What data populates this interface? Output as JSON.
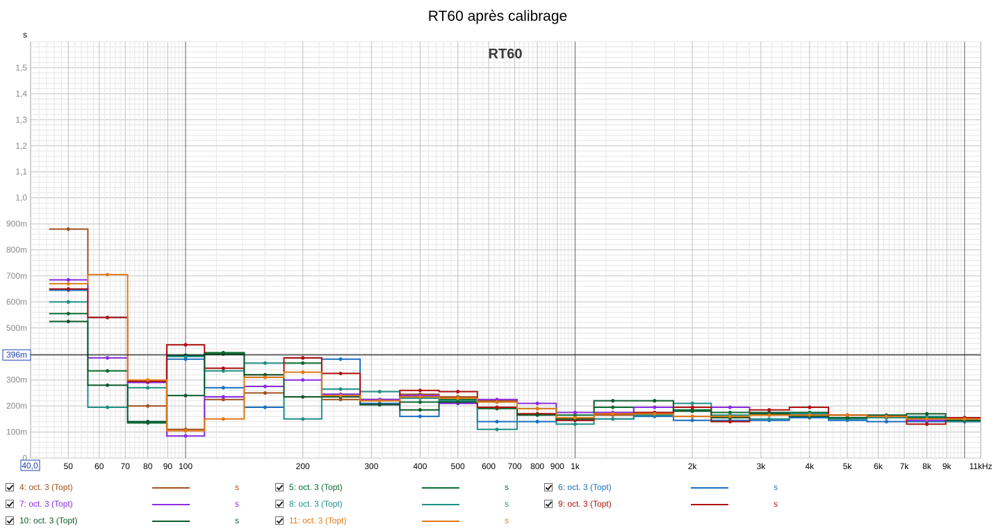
{
  "chart_data": {
    "type": "line",
    "title": "RT60 après calibrage",
    "inner_title": "RT60",
    "y_unit_label": "s",
    "x_min_label": "40,0",
    "cursor_label": "396m",
    "cursor_value": 0.396,
    "xlim": [
      40,
      11000
    ],
    "ylim": [
      0,
      1.6
    ],
    "x_scale": "log",
    "grid": true,
    "x_ticks": [
      {
        "v": 50,
        "label": "50"
      },
      {
        "v": 60,
        "label": "60"
      },
      {
        "v": 70,
        "label": "70"
      },
      {
        "v": 80,
        "label": "80"
      },
      {
        "v": 90,
        "label": "90"
      },
      {
        "v": 100,
        "label": "100"
      },
      {
        "v": 200,
        "label": "200"
      },
      {
        "v": 300,
        "label": "300"
      },
      {
        "v": 400,
        "label": "400"
      },
      {
        "v": 500,
        "label": "500"
      },
      {
        "v": 600,
        "label": "600"
      },
      {
        "v": 700,
        "label": "700"
      },
      {
        "v": 800,
        "label": "800"
      },
      {
        "v": 900,
        "label": "900"
      },
      {
        "v": 1000,
        "label": "1k"
      },
      {
        "v": 2000,
        "label": "2k"
      },
      {
        "v": 3000,
        "label": "3k"
      },
      {
        "v": 4000,
        "label": "4k"
      },
      {
        "v": 5000,
        "label": "5k"
      },
      {
        "v": 6000,
        "label": "6k"
      },
      {
        "v": 7000,
        "label": "7k"
      },
      {
        "v": 8000,
        "label": "8k"
      },
      {
        "v": 9000,
        "label": "9k"
      },
      {
        "v": 11000,
        "label": "11kHz"
      }
    ],
    "y_ticks": [
      {
        "v": 0,
        "label": "0"
      },
      {
        "v": 0.1,
        "label": "100m"
      },
      {
        "v": 0.2,
        "label": "200m"
      },
      {
        "v": 0.3,
        "label": "300m"
      },
      {
        "v": 0.4,
        "label": "400m"
      },
      {
        "v": 0.5,
        "label": "500m"
      },
      {
        "v": 0.6,
        "label": "600m"
      },
      {
        "v": 0.7,
        "label": "700m"
      },
      {
        "v": 0.8,
        "label": "800m"
      },
      {
        "v": 0.9,
        "label": "900m"
      },
      {
        "v": 1.0,
        "label": "1,0"
      },
      {
        "v": 1.1,
        "label": "1,1"
      },
      {
        "v": 1.2,
        "label": "1,2"
      },
      {
        "v": 1.3,
        "label": "1,3"
      },
      {
        "v": 1.4,
        "label": "1,4"
      },
      {
        "v": 1.5,
        "label": "1,5"
      }
    ],
    "bands_hz": [
      50,
      63,
      80,
      100,
      125,
      160,
      200,
      250,
      315,
      400,
      500,
      630,
      800,
      1000,
      1250,
      1600,
      2000,
      2500,
      3150,
      4000,
      5000,
      6300,
      8000,
      10000
    ],
    "series": [
      {
        "name": "4: oct. 3 (Topt)",
        "unit": "s",
        "color": "#a0521e",
        "values": [
          0.88,
          0.54,
          0.2,
          0.11,
          0.225,
          0.25,
          0.33,
          0.225,
          0.22,
          0.245,
          0.235,
          0.22,
          0.17,
          0.155,
          0.165,
          0.165,
          0.16,
          0.16,
          0.165,
          0.165,
          0.165,
          0.16,
          0.155,
          0.155
        ]
      },
      {
        "name": "5: oct. 3 (Topt)",
        "unit": "s",
        "color": "#0a6d32",
        "values": [
          0.555,
          0.335,
          0.135,
          0.395,
          0.405,
          0.31,
          0.365,
          0.245,
          0.225,
          0.215,
          0.225,
          0.19,
          0.17,
          0.165,
          0.195,
          0.175,
          0.185,
          0.175,
          0.175,
          0.175,
          0.165,
          0.155,
          0.155,
          0.155
        ]
      },
      {
        "name": "6: oct. 3 (Topt)",
        "unit": "s",
        "color": "#1a6fc0",
        "values": [
          0.645,
          0.54,
          0.14,
          0.38,
          0.27,
          0.195,
          0.385,
          0.38,
          0.21,
          0.16,
          0.21,
          0.14,
          0.14,
          0.145,
          0.15,
          0.16,
          0.145,
          0.145,
          0.145,
          0.155,
          0.145,
          0.14,
          0.14,
          0.14
        ]
      },
      {
        "name": "7: oct. 3 (Topt)",
        "unit": "s",
        "color": "#8a2be2",
        "values": [
          0.685,
          0.385,
          0.29,
          0.085,
          0.235,
          0.275,
          0.3,
          0.245,
          0.225,
          0.24,
          0.21,
          0.225,
          0.21,
          0.175,
          0.175,
          0.195,
          0.195,
          0.195,
          0.17,
          0.17,
          0.165,
          0.155,
          0.145,
          0.14
        ]
      },
      {
        "name": "8: oct. 3 (Topt)",
        "unit": "s",
        "color": "#1f8f86",
        "values": [
          0.6,
          0.195,
          0.27,
          0.39,
          0.335,
          0.365,
          0.15,
          0.265,
          0.255,
          0.23,
          0.22,
          0.11,
          0.19,
          0.13,
          0.15,
          0.165,
          0.21,
          0.165,
          0.15,
          0.17,
          0.15,
          0.155,
          0.16,
          0.14
        ]
      },
      {
        "name": "9: oct. 3 (Topt)",
        "unit": "s",
        "color": "#b01010",
        "values": [
          0.65,
          0.54,
          0.295,
          0.435,
          0.345,
          0.32,
          0.385,
          0.325,
          0.205,
          0.26,
          0.255,
          0.195,
          0.17,
          0.145,
          0.17,
          0.175,
          0.195,
          0.14,
          0.185,
          0.195,
          0.165,
          0.16,
          0.13,
          0.155
        ]
      },
      {
        "name": "10: oct. 3 (Topt)",
        "unit": "s",
        "color": "#0d5a2c",
        "values": [
          0.525,
          0.28,
          0.14,
          0.24,
          0.4,
          0.32,
          0.235,
          0.235,
          0.205,
          0.185,
          0.215,
          0.215,
          0.165,
          0.15,
          0.22,
          0.22,
          0.18,
          0.155,
          0.17,
          0.16,
          0.155,
          0.165,
          0.17,
          0.145
        ]
      },
      {
        "name": "11: oct. 3 (Topt)",
        "unit": "s",
        "color": "#e07a14",
        "values": [
          0.67,
          0.705,
          0.3,
          0.105,
          0.15,
          0.31,
          0.33,
          0.24,
          0.22,
          0.235,
          0.23,
          0.215,
          0.19,
          0.155,
          0.17,
          0.17,
          0.16,
          0.16,
          0.165,
          0.165,
          0.165,
          0.16,
          0.15,
          0.15
        ]
      }
    ]
  }
}
